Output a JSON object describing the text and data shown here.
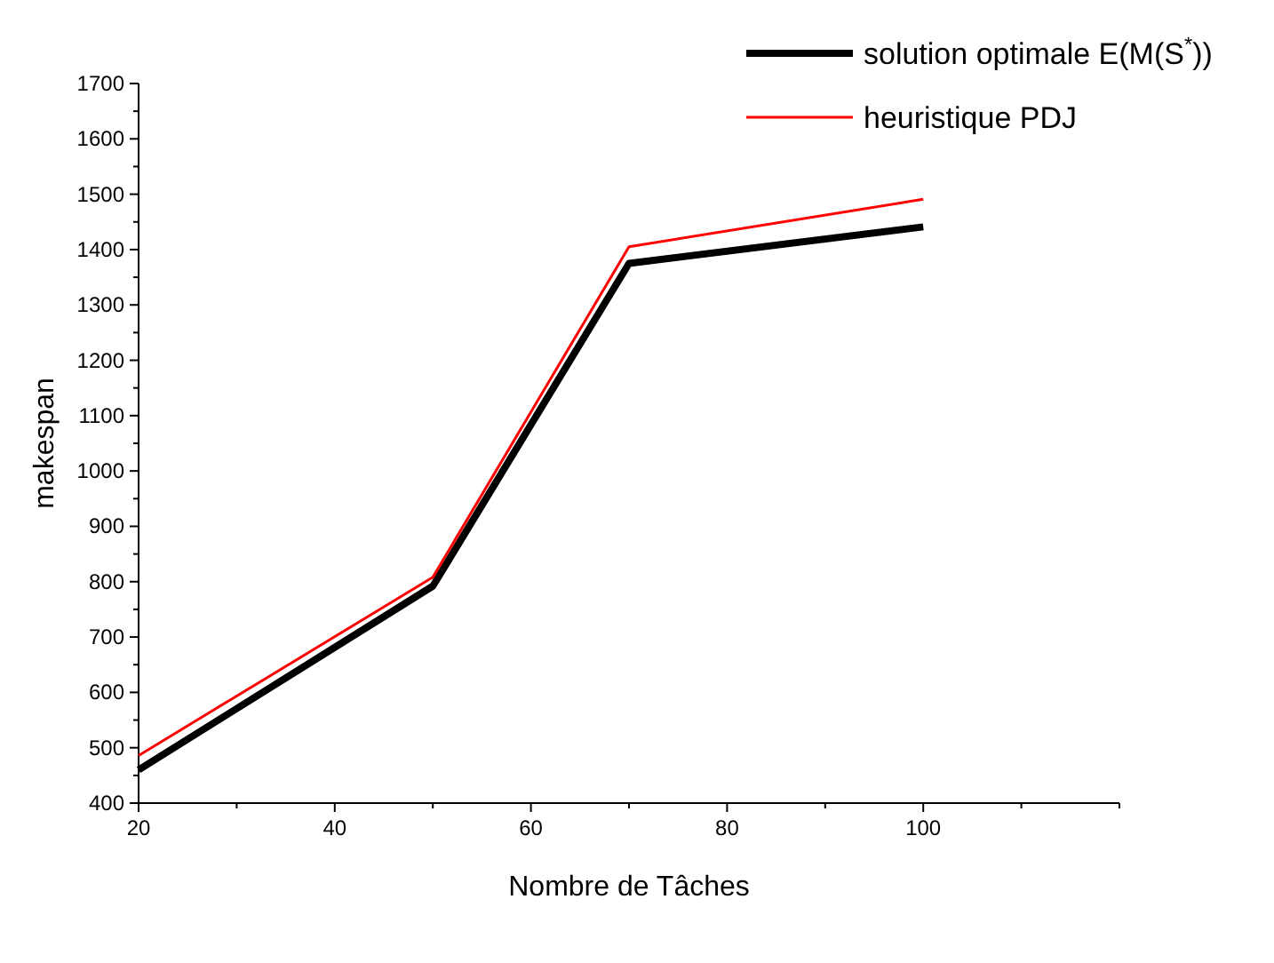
{
  "chart_data": {
    "type": "line",
    "xlabel": "Nombre de Tâches",
    "ylabel": "makespan",
    "x": [
      20,
      50,
      70,
      100
    ],
    "series": [
      {
        "name": "solution optimale E(M(S$^{*}$))",
        "color": "#000000",
        "values": [
          460,
          792,
          1375,
          1441
        ]
      },
      {
        "name": "heuristique PDJ",
        "color": "#ff0000",
        "values": [
          486,
          808,
          1405,
          1491
        ]
      }
    ],
    "xlim": [
      20,
      120
    ],
    "xticks": [
      20,
      {
        "value": 30,
        "label": null
      },
      40,
      {
        "value": 50,
        "label": null
      },
      60,
      {
        "value": 70,
        "label": null
      },
      80,
      {
        "value": 90,
        "label": null
      },
      100,
      {
        "value": 110,
        "label": null
      },
      {
        "value": 120,
        "label": null
      }
    ],
    "ylim": [
      400,
      1700
    ],
    "yticks": [
      400,
      {
        "value": 450,
        "label": null
      },
      500,
      {
        "value": 550,
        "label": null
      },
      600,
      {
        "value": 650,
        "label": null
      },
      700,
      {
        "value": 750,
        "label": null
      },
      800,
      {
        "value": 850,
        "label": null
      },
      900,
      {
        "value": 950,
        "label": null
      },
      1000,
      {
        "value": 1050,
        "label": null
      },
      1100,
      {
        "value": 1150,
        "label": null
      },
      1200,
      {
        "value": 1250,
        "label": null
      },
      1300,
      {
        "value": 1350,
        "label": null
      },
      1400,
      {
        "value": 1450,
        "label": null
      },
      1500,
      {
        "value": 1550,
        "label": null
      },
      1600,
      {
        "value": 1650,
        "label": null
      },
      1700
    ],
    "legend": "top right",
    "grid": false,
    "marker": "none",
    "line_style": "solid"
  }
}
